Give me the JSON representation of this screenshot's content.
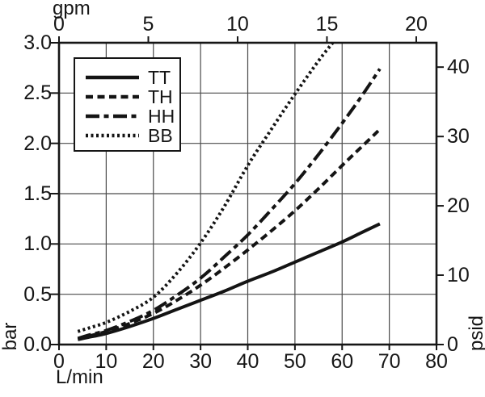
{
  "chart_data": {
    "type": "line",
    "title": "",
    "xlabel": "L/min",
    "ylabel": "bar",
    "xlabel_secondary": "gpm",
    "ylabel_secondary": "psid",
    "xlim": [
      0,
      80
    ],
    "ylim": [
      0,
      3
    ],
    "grid": true,
    "legend_position": "top-left",
    "axes": {
      "bottom": {
        "label": "L/min",
        "ticks": [
          {
            "pos": 0,
            "label": "0"
          },
          {
            "pos": 10,
            "label": "10"
          },
          {
            "pos": 20,
            "label": "20"
          },
          {
            "pos": 30,
            "label": "30"
          },
          {
            "pos": 40,
            "label": "40"
          },
          {
            "pos": 50,
            "label": "50"
          },
          {
            "pos": 60,
            "label": "60"
          },
          {
            "pos": 70,
            "label": "70"
          },
          {
            "pos": 80,
            "label": "80"
          }
        ]
      },
      "top": {
        "label": "gpm",
        "ticks": [
          {
            "pos": 0,
            "label": "0"
          },
          {
            "pos": 18.93,
            "label": "5"
          },
          {
            "pos": 37.85,
            "label": "10"
          },
          {
            "pos": 56.78,
            "label": "15"
          },
          {
            "pos": 75.71,
            "label": "20"
          }
        ]
      },
      "left": {
        "label": "bar",
        "ticks": [
          {
            "pos": 0,
            "label": "0.0"
          },
          {
            "pos": 0.5,
            "label": "0.5"
          },
          {
            "pos": 1,
            "label": "1.0"
          },
          {
            "pos": 1.5,
            "label": "1.5"
          },
          {
            "pos": 2,
            "label": "2.0"
          },
          {
            "pos": 2.5,
            "label": "2.5"
          },
          {
            "pos": 3,
            "label": "3.0"
          }
        ]
      },
      "right": {
        "label": "psid",
        "ticks": [
          {
            "pos": 0,
            "label": "0"
          },
          {
            "pos": 0.69,
            "label": "10"
          },
          {
            "pos": 1.379,
            "label": "20"
          },
          {
            "pos": 2.068,
            "label": "30"
          },
          {
            "pos": 2.758,
            "label": "40"
          }
        ]
      }
    },
    "series": [
      {
        "name": "TT",
        "style": "solid",
        "points": [
          [
            4,
            0.05
          ],
          [
            6,
            0.07
          ],
          [
            10,
            0.11
          ],
          [
            15,
            0.18
          ],
          [
            20,
            0.26
          ],
          [
            25,
            0.35
          ],
          [
            30,
            0.44
          ],
          [
            35,
            0.53
          ],
          [
            40,
            0.63
          ],
          [
            45,
            0.72
          ],
          [
            50,
            0.82
          ],
          [
            55,
            0.92
          ],
          [
            60,
            1.02
          ],
          [
            64,
            1.11
          ],
          [
            68,
            1.2
          ]
        ]
      },
      {
        "name": "TH",
        "style": "dashed",
        "points": [
          [
            4,
            0.06
          ],
          [
            6,
            0.08
          ],
          [
            10,
            0.13
          ],
          [
            15,
            0.21
          ],
          [
            20,
            0.31
          ],
          [
            25,
            0.44
          ],
          [
            30,
            0.59
          ],
          [
            35,
            0.76
          ],
          [
            40,
            0.94
          ],
          [
            45,
            1.13
          ],
          [
            50,
            1.33
          ],
          [
            55,
            1.55
          ],
          [
            60,
            1.78
          ],
          [
            64,
            1.96
          ],
          [
            68,
            2.14
          ]
        ]
      },
      {
        "name": "HH",
        "style": "dash-dot",
        "points": [
          [
            4,
            0.06
          ],
          [
            6,
            0.09
          ],
          [
            10,
            0.14
          ],
          [
            15,
            0.23
          ],
          [
            20,
            0.34
          ],
          [
            25,
            0.49
          ],
          [
            30,
            0.66
          ],
          [
            35,
            0.87
          ],
          [
            40,
            1.09
          ],
          [
            45,
            1.34
          ],
          [
            50,
            1.6
          ],
          [
            55,
            1.89
          ],
          [
            60,
            2.2
          ],
          [
            64,
            2.46
          ],
          [
            68,
            2.74
          ]
        ]
      },
      {
        "name": "BB",
        "style": "dotted",
        "points": [
          [
            4,
            0.13
          ],
          [
            6,
            0.16
          ],
          [
            10,
            0.22
          ],
          [
            15,
            0.33
          ],
          [
            20,
            0.47
          ],
          [
            25,
            0.71
          ],
          [
            30,
            1.01
          ],
          [
            35,
            1.37
          ],
          [
            40,
            1.78
          ],
          [
            45,
            2.14
          ],
          [
            50,
            2.49
          ],
          [
            55,
            2.82
          ],
          [
            58,
            3.0
          ]
        ]
      }
    ],
    "colors": {
      "line": "#141414",
      "grid": "#4a4a4a",
      "frame": "#161616",
      "text": "#161616",
      "background": "#ffffff"
    }
  }
}
